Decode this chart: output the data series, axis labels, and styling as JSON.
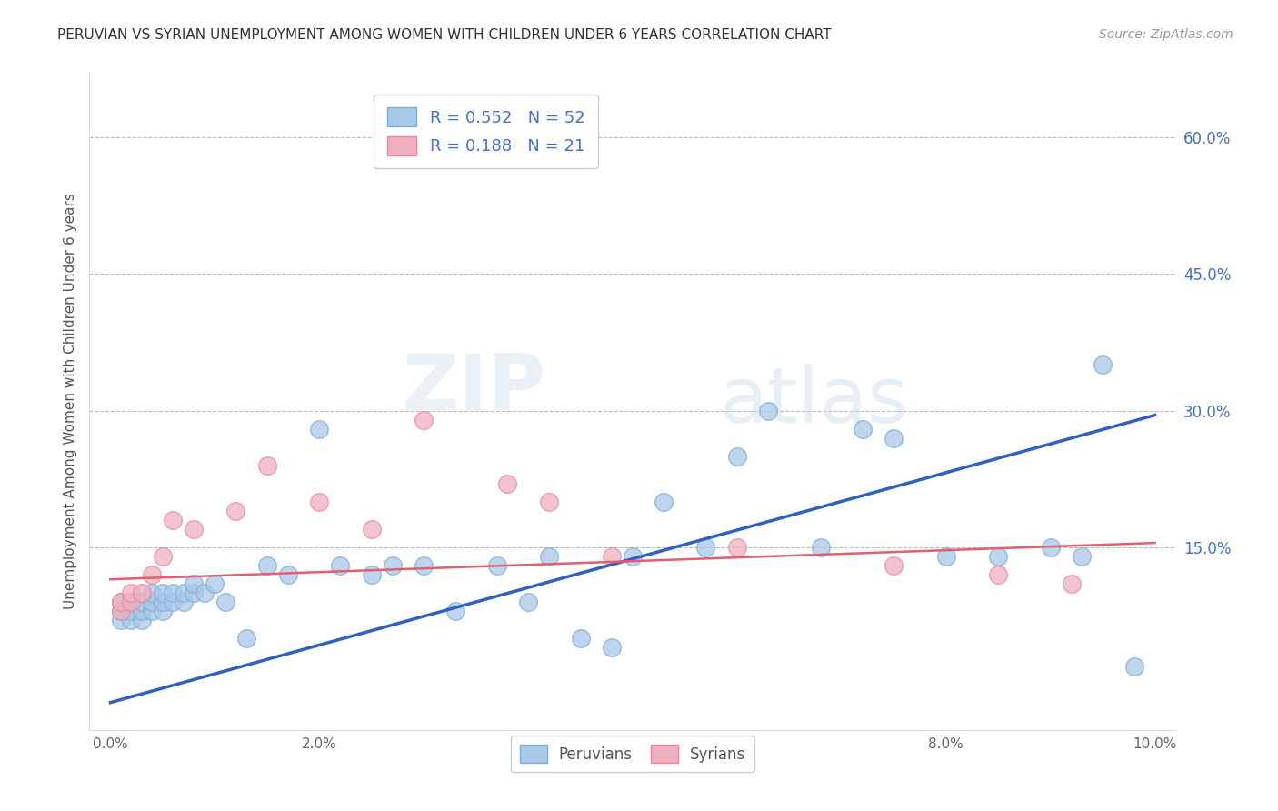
{
  "title": "PERUVIAN VS SYRIAN UNEMPLOYMENT AMONG WOMEN WITH CHILDREN UNDER 6 YEARS CORRELATION CHART",
  "source": "Source: ZipAtlas.com",
  "ylabel": "Unemployment Among Women with Children Under 6 years",
  "xlim": [
    -0.002,
    0.102
  ],
  "ylim": [
    -0.05,
    0.67
  ],
  "xticks": [
    0.0,
    0.02,
    0.04,
    0.06,
    0.08,
    0.1
  ],
  "yticks": [
    0.15,
    0.3,
    0.45,
    0.6
  ],
  "ytick_labels": [
    "15.0%",
    "30.0%",
    "45.0%",
    "60.0%"
  ],
  "xtick_labels": [
    "0.0%",
    "2.0%",
    "4.0%",
    "6.0%",
    "8.0%",
    "10.0%"
  ],
  "legend_blue_label_r": "R = 0.552",
  "legend_blue_label_n": "N = 52",
  "legend_pink_label_r": "R = 0.188",
  "legend_pink_label_n": "N = 21",
  "legend_bottom_blue": "Peruvians",
  "legend_bottom_pink": "Syrians",
  "peruvian_color": "#a8c8e8",
  "syrian_color": "#f0b0c0",
  "peruvian_edge_color": "#7bafd4",
  "syrian_edge_color": "#e888a0",
  "blue_line_color": "#3060c0",
  "pink_line_color": "#e06070",
  "watermark_zip": "ZIP",
  "watermark_atlas": "atlas",
  "peruvian_x": [
    0.001,
    0.001,
    0.001,
    0.002,
    0.002,
    0.002,
    0.003,
    0.003,
    0.003,
    0.004,
    0.004,
    0.004,
    0.005,
    0.005,
    0.005,
    0.006,
    0.006,
    0.007,
    0.007,
    0.008,
    0.008,
    0.009,
    0.01,
    0.011,
    0.013,
    0.015,
    0.017,
    0.02,
    0.022,
    0.025,
    0.027,
    0.03,
    0.033,
    0.037,
    0.04,
    0.042,
    0.045,
    0.048,
    0.05,
    0.053,
    0.057,
    0.06,
    0.063,
    0.068,
    0.072,
    0.075,
    0.08,
    0.085,
    0.09,
    0.093,
    0.095,
    0.098
  ],
  "peruvian_y": [
    0.07,
    0.08,
    0.09,
    0.07,
    0.08,
    0.09,
    0.07,
    0.08,
    0.09,
    0.08,
    0.09,
    0.1,
    0.08,
    0.09,
    0.1,
    0.09,
    0.1,
    0.09,
    0.1,
    0.1,
    0.11,
    0.1,
    0.11,
    0.09,
    0.05,
    0.13,
    0.12,
    0.28,
    0.13,
    0.12,
    0.13,
    0.13,
    0.08,
    0.13,
    0.09,
    0.14,
    0.05,
    0.04,
    0.14,
    0.2,
    0.15,
    0.25,
    0.3,
    0.15,
    0.28,
    0.27,
    0.14,
    0.14,
    0.15,
    0.14,
    0.35,
    0.02
  ],
  "syrian_x": [
    0.001,
    0.001,
    0.002,
    0.002,
    0.003,
    0.004,
    0.005,
    0.006,
    0.008,
    0.012,
    0.015,
    0.02,
    0.025,
    0.03,
    0.038,
    0.042,
    0.048,
    0.06,
    0.075,
    0.085,
    0.092
  ],
  "syrian_y": [
    0.08,
    0.09,
    0.09,
    0.1,
    0.1,
    0.12,
    0.14,
    0.18,
    0.17,
    0.19,
    0.24,
    0.2,
    0.17,
    0.29,
    0.22,
    0.2,
    0.14,
    0.15,
    0.13,
    0.12,
    0.11
  ],
  "blue_line_x": [
    0.0,
    0.1
  ],
  "blue_line_y": [
    -0.02,
    0.295
  ],
  "pink_line_x": [
    0.0,
    0.1
  ],
  "pink_line_y": [
    0.115,
    0.155
  ]
}
